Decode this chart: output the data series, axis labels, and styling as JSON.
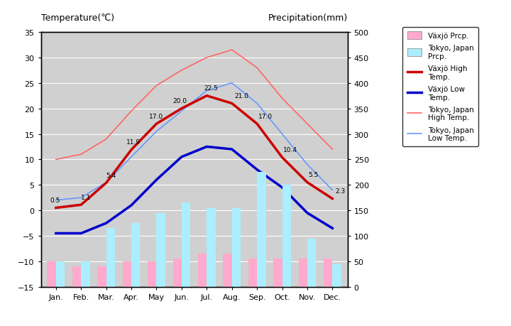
{
  "months": [
    "Jan.",
    "Feb.",
    "Mar.",
    "Apr.",
    "May",
    "Jun.",
    "Jul.",
    "Aug.",
    "Sep.",
    "Oct.",
    "Nov.",
    "Dec."
  ],
  "vaxjo_high": [
    0.5,
    1.1,
    5.4,
    11.9,
    17.0,
    20.0,
    22.5,
    21.0,
    17.0,
    10.4,
    5.5,
    2.3
  ],
  "vaxjo_low": [
    -4.5,
    -4.5,
    -2.5,
    1.0,
    6.0,
    10.5,
    12.5,
    12.0,
    8.0,
    4.5,
    -0.5,
    -3.5
  ],
  "tokyo_high": [
    10.0,
    11.0,
    14.0,
    19.5,
    24.5,
    27.5,
    30.0,
    31.5,
    28.0,
    22.0,
    17.0,
    12.0
  ],
  "tokyo_low": [
    2.0,
    2.5,
    5.5,
    10.5,
    15.5,
    19.5,
    23.5,
    25.0,
    21.0,
    15.0,
    9.0,
    4.0
  ],
  "vaxjo_prcp": [
    50,
    40,
    40,
    50,
    50,
    55,
    65,
    65,
    55,
    55,
    55,
    55
  ],
  "tokyo_prcp": [
    50,
    50,
    115,
    125,
    145,
    165,
    155,
    155,
    225,
    200,
    95,
    45
  ],
  "temp_ylim": [
    -15,
    35
  ],
  "prcp_ylim": [
    0,
    500
  ],
  "temp_yticks": [
    -15,
    -10,
    -5,
    0,
    5,
    10,
    15,
    20,
    25,
    30,
    35
  ],
  "prcp_yticks": [
    0,
    50,
    100,
    150,
    200,
    250,
    300,
    350,
    400,
    450,
    500
  ],
  "bg_color": "#d0d0d0",
  "vaxjo_high_color": "#cc0000",
  "vaxjo_low_color": "#0000cc",
  "tokyo_high_color": "#ff6666",
  "tokyo_low_color": "#6699ff",
  "vaxjo_prcp_color": "#ffaacc",
  "tokyo_prcp_color": "#aaeeff",
  "title_left": "Temperature(℃)",
  "title_right": "Precipitation(mm)",
  "legend_vaxjo_prcp": "Växjö Prcp.",
  "legend_tokyo_prcp": "Tokyo, Japan\nPrcp.",
  "legend_vaxjo_high": "Växjö High\nTemp.",
  "legend_vaxjo_low": "Växjö Low\nTemp.",
  "legend_tokyo_high": "Tokyo, Japan\nHigh Temp.",
  "legend_tokyo_low": "Tokyo, Japan\nLow Temp."
}
